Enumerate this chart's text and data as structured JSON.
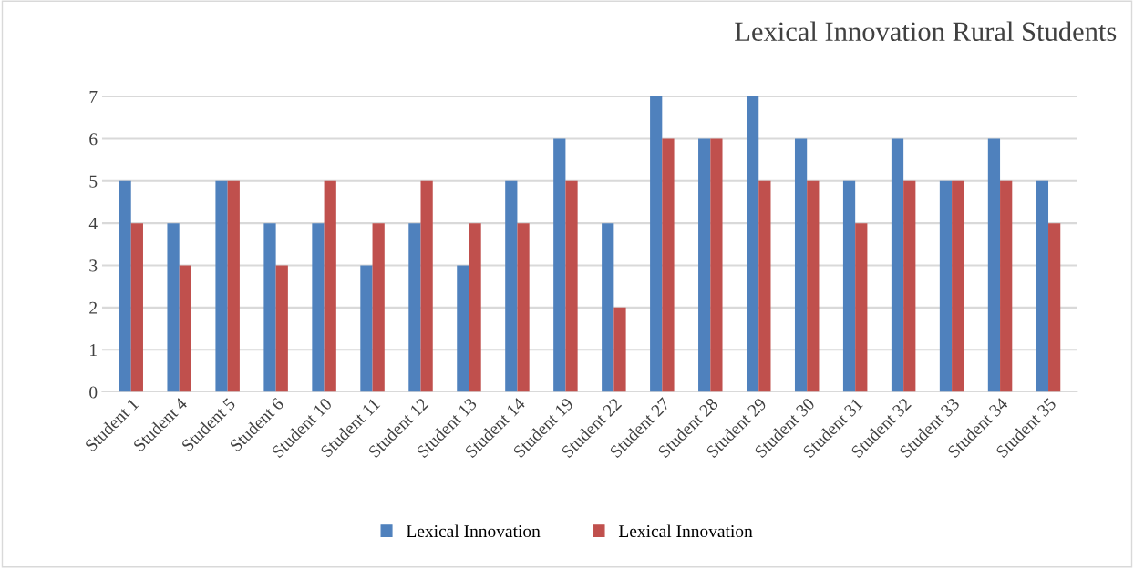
{
  "chart_data": {
    "type": "bar",
    "title": "Lexical Innovation Rural Students",
    "categories": [
      "Student 1",
      "Student 4",
      "Student 5",
      "Student 6",
      "Student 10",
      "Student 11",
      "Student 12",
      "Student 13",
      "Student 14",
      "Student 19",
      "Student 22",
      "Student 27",
      "Student 28",
      "Student 29",
      "Student 30",
      "Student 31",
      "Student 32",
      "Student 33",
      "Student 34",
      "Student 35"
    ],
    "series": [
      {
        "name": "Lexical Innovation",
        "color": "#4f81bd",
        "values": [
          5,
          4,
          5,
          4,
          4,
          3,
          4,
          3,
          5,
          6,
          4,
          7,
          6,
          7,
          6,
          5,
          6,
          5,
          6,
          5
        ]
      },
      {
        "name": "Lexical Innovation",
        "color": "#c0504d",
        "values": [
          4,
          3,
          5,
          3,
          5,
          4,
          5,
          4,
          4,
          5,
          2,
          6,
          6,
          5,
          5,
          4,
          5,
          5,
          5,
          4
        ]
      }
    ],
    "ylim": [
      0,
      7
    ],
    "yticks": [
      0,
      1,
      2,
      3,
      4,
      5,
      6,
      7
    ],
    "grid": "y",
    "legend": "bottom"
  }
}
